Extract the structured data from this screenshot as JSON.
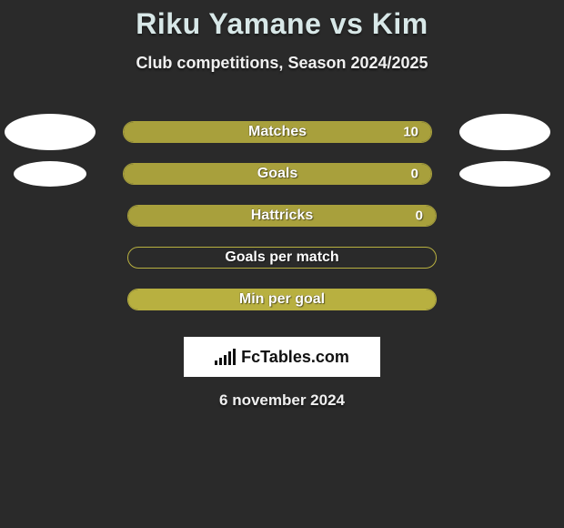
{
  "title": "Riku Yamane vs Kim",
  "subtitle": "Club competitions, Season 2024/2025",
  "date": "6 november 2024",
  "logo_text": "FcTables.com",
  "styling": {
    "background_color": "#2a2a2a",
    "title_color": "#d8e8e8",
    "title_fontsize": 32,
    "subtitle_fontsize": 18,
    "bar_label_fontsize": 16,
    "ellipse_color": "#ffffff",
    "logo_bg": "#ffffff",
    "logo_text_color": "#111111"
  },
  "stats": [
    {
      "label": "Matches",
      "value": "10",
      "border_color": "#a8a03c",
      "fill_color": "#a8a03c",
      "fill_pct": 100,
      "show_ellipses": true,
      "ellipse_left_w": 100,
      "ellipse_left_h": 40,
      "ellipse_right_w": 100,
      "ellipse_right_h": 40
    },
    {
      "label": "Goals",
      "value": "0",
      "border_color": "#a8a03c",
      "fill_color": "#a8a03c",
      "fill_pct": 100,
      "show_ellipses": true,
      "ellipse_left_w": 80,
      "ellipse_left_h": 28,
      "ellipse_right_w": 100,
      "ellipse_right_h": 28
    },
    {
      "label": "Hattricks",
      "value": "0",
      "border_color": "#a8a03c",
      "fill_color": "#a8a03c",
      "fill_pct": 100,
      "show_ellipses": false
    },
    {
      "label": "Goals per match",
      "value": "",
      "border_color": "#b8b040",
      "fill_color": "transparent",
      "fill_pct": 0,
      "show_ellipses": false
    },
    {
      "label": "Min per goal",
      "value": "",
      "border_color": "#b8b040",
      "fill_color": "#b8b040",
      "fill_pct": 100,
      "show_ellipses": false
    }
  ]
}
